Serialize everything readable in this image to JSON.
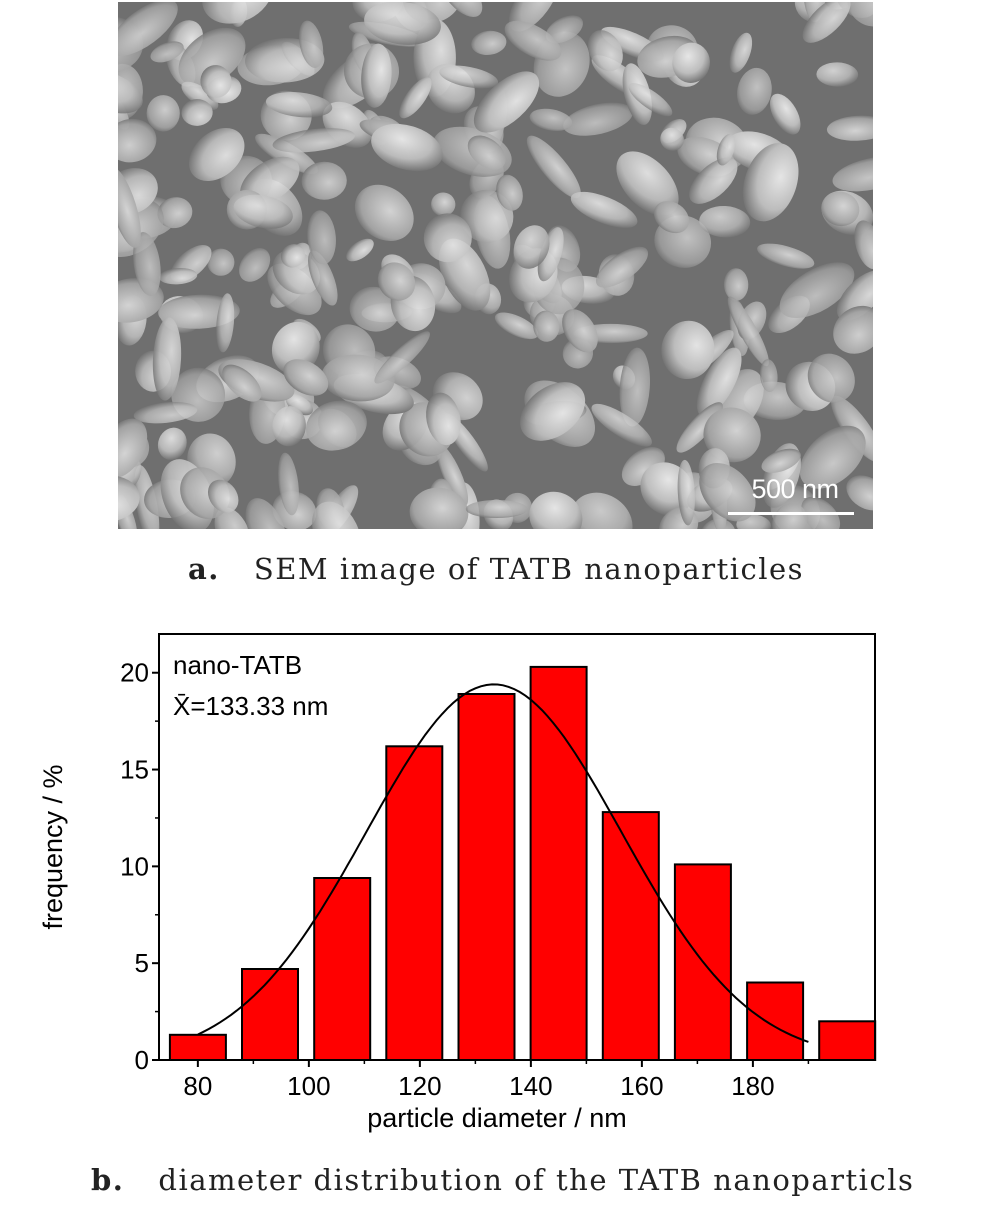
{
  "panel_a": {
    "scale_bar_label": "500 nm",
    "caption_letter": "a.",
    "caption_text": "SEM image of TATB nanoparticles"
  },
  "panel_b": {
    "caption_letter": "b.",
    "caption_text": "diameter distribution of the TATB nanoparticls"
  },
  "chart_data": {
    "type": "bar",
    "x_values": [
      80,
      93,
      106,
      119,
      132,
      145,
      158,
      171,
      184
    ],
    "values": [
      1.3,
      4.7,
      9.4,
      16.2,
      18.9,
      20.3,
      12.8,
      10.1,
      4.0
    ],
    "extra_bar": {
      "x": 197,
      "value": 2.0
    },
    "bar_color": "#ff0000",
    "bar_edge_color": "#000000",
    "fit_curve": "gaussian",
    "fit_mean": 133.33,
    "fit_peak": 19.4,
    "fit_sigma": 23,
    "xlabel": "particle diameter / nm",
    "ylabel": "frequency / %",
    "xlim": [
      73,
      202
    ],
    "ylim": [
      0,
      22
    ],
    "xticks": [
      80,
      100,
      120,
      140,
      160,
      180
    ],
    "yticks": [
      0,
      5,
      10,
      15,
      20
    ],
    "annotation_line1": "nano-TATB",
    "annotation_line2": "X̄=133.33 nm",
    "grid": false,
    "legend": "none"
  }
}
